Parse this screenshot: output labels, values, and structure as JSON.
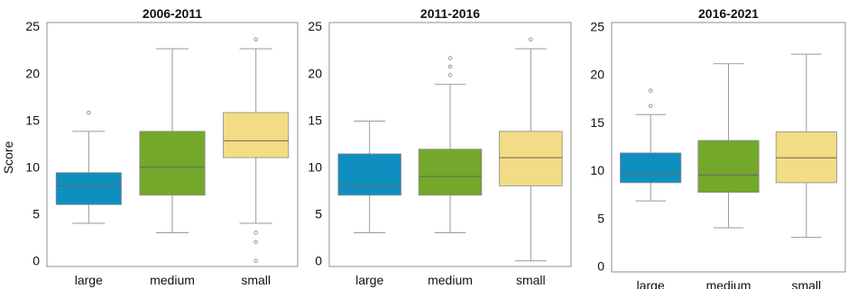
{
  "figure": {
    "ylabel": "Score"
  },
  "chart_data": [
    {
      "type": "box",
      "title": "2006-2011",
      "ylabel": "Score",
      "xlabel": "",
      "categories": [
        "large",
        "medium",
        "small"
      ],
      "ylim": [
        -0.6,
        25.4
      ],
      "yticks": [
        0,
        5,
        10,
        15,
        20,
        25
      ],
      "boxes": [
        {
          "category": "large",
          "whisker_low": 4,
          "q1": 6,
          "median": 8,
          "q3": 9.4,
          "whisker_high": 13.8,
          "outliers": [
            15.8
          ]
        },
        {
          "category": "medium",
          "whisker_low": 3,
          "q1": 7,
          "median": 10,
          "q3": 13.8,
          "whisker_high": 22.6,
          "outliers": []
        },
        {
          "category": "small",
          "whisker_low": 4,
          "q1": 11,
          "median": 12.8,
          "q3": 15.8,
          "whisker_high": 22.6,
          "outliers": [
            23.6,
            3,
            2,
            0
          ]
        }
      ]
    },
    {
      "type": "box",
      "title": "2011-2016",
      "ylabel": "",
      "xlabel": "",
      "categories": [
        "large",
        "medium",
        "small"
      ],
      "ylim": [
        -0.6,
        25.4
      ],
      "yticks": [
        0,
        5,
        10,
        15,
        20,
        25
      ],
      "boxes": [
        {
          "category": "large",
          "whisker_low": 3,
          "q1": 7,
          "median": 8,
          "q3": 11.4,
          "whisker_high": 14.9,
          "outliers": []
        },
        {
          "category": "medium",
          "whisker_low": 3,
          "q1": 7,
          "median": 9,
          "q3": 11.9,
          "whisker_high": 18.8,
          "outliers": [
            19.8,
            20.7,
            21.6
          ]
        },
        {
          "category": "small",
          "whisker_low": 0,
          "q1": 8,
          "median": 11,
          "q3": 13.8,
          "whisker_high": 22.6,
          "outliers": [
            23.6
          ]
        }
      ]
    },
    {
      "type": "box",
      "title": "2016-2021",
      "ylabel": "",
      "xlabel": "",
      "categories": [
        "large",
        "medium",
        "small"
      ],
      "ylim": [
        -0.6,
        25.4
      ],
      "yticks": [
        0,
        5,
        10,
        15,
        20,
        25
      ],
      "boxes": [
        {
          "category": "large",
          "whisker_low": 6.8,
          "q1": 8.7,
          "median": 9.6,
          "q3": 11.8,
          "whisker_high": 15.8,
          "outliers": [
            16.7,
            18.3
          ]
        },
        {
          "category": "medium",
          "whisker_low": 4,
          "q1": 7.7,
          "median": 9.5,
          "q3": 13.1,
          "whisker_high": 21.1,
          "outliers": []
        },
        {
          "category": "small",
          "whisker_low": 3,
          "q1": 8.7,
          "median": 11.3,
          "q3": 14,
          "whisker_high": 22.1,
          "outliers": []
        }
      ]
    }
  ],
  "colors": {
    "large": "#0f8fc0",
    "medium": "#73a82a",
    "small": "#f2dc85",
    "whisker": "#9a9a9a",
    "median": "#666666",
    "frame": "#8c8c8c"
  }
}
